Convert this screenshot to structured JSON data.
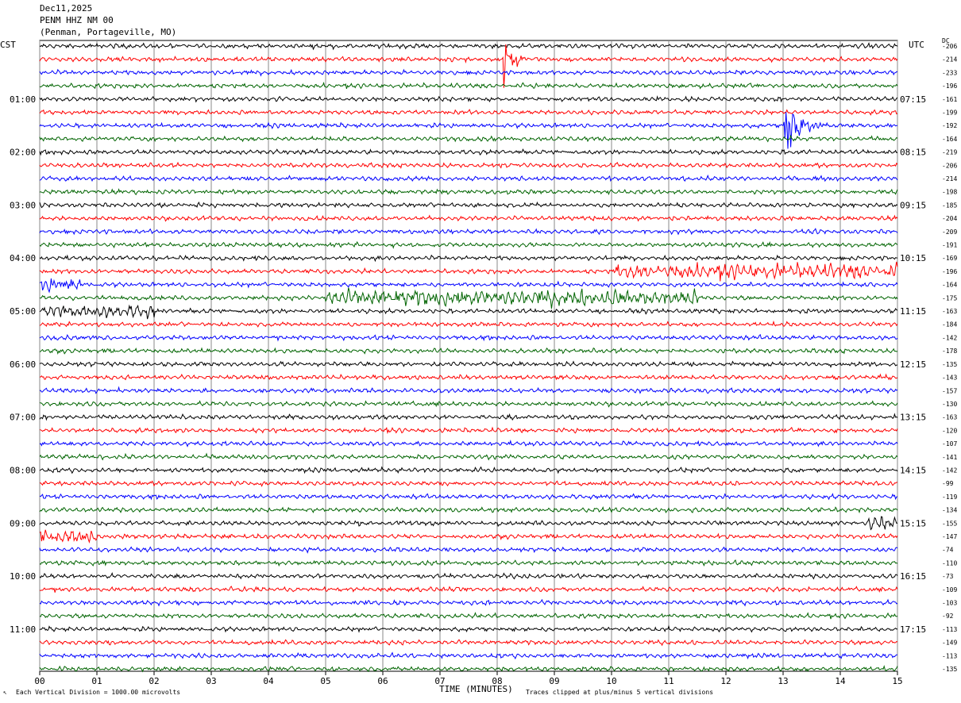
{
  "header": {
    "date": "Dec11,2025",
    "station": "PENM HHZ NM 00",
    "location": "(Penman, Portageville, MO)"
  },
  "left_tz": "CST",
  "right_tz": "UTC",
  "dc_label": "DC",
  "x_axis_title": "TIME (MINUTES)",
  "footer": {
    "scale_note": "Each Vertical Division = 1000.00 microvolts",
    "clip_note": "Traces clipped at plus/minus 5 vertical divisions"
  },
  "chart_data": {
    "type": "line",
    "title": "PENM HHZ NM 00",
    "xlabel": "TIME (MINUTES)",
    "xlim": [
      0,
      15
    ],
    "x_ticks": [
      "00",
      "01",
      "02",
      "03",
      "04",
      "05",
      "06",
      "07",
      "08",
      "09",
      "10",
      "11",
      "12",
      "13",
      "14",
      "15"
    ],
    "trace_colors": [
      "#000000",
      "#ff0000",
      "#0000ff",
      "#006400"
    ],
    "left_labels": [
      {
        "row": 4,
        "text": "01:00"
      },
      {
        "row": 8,
        "text": "02:00"
      },
      {
        "row": 12,
        "text": "03:00"
      },
      {
        "row": 16,
        "text": "04:00"
      },
      {
        "row": 20,
        "text": "05:00"
      },
      {
        "row": 24,
        "text": "06:00"
      },
      {
        "row": 28,
        "text": "07:00"
      },
      {
        "row": 32,
        "text": "08:00"
      },
      {
        "row": 36,
        "text": "09:00"
      },
      {
        "row": 40,
        "text": "10:00"
      },
      {
        "row": 44,
        "text": "11:00"
      }
    ],
    "right_labels": [
      {
        "row": 4,
        "text": "07:15"
      },
      {
        "row": 8,
        "text": "08:15"
      },
      {
        "row": 12,
        "text": "09:15"
      },
      {
        "row": 16,
        "text": "10:15"
      },
      {
        "row": 20,
        "text": "11:15"
      },
      {
        "row": 24,
        "text": "12:15"
      },
      {
        "row": 28,
        "text": "13:15"
      },
      {
        "row": 32,
        "text": "14:15"
      },
      {
        "row": 36,
        "text": "15:15"
      },
      {
        "row": 40,
        "text": "16:15"
      },
      {
        "row": 44,
        "text": "17:15"
      }
    ],
    "dc_offsets": [
      -206,
      -214,
      -233,
      -196,
      -161,
      -199,
      -192,
      -164,
      -219,
      -206,
      -214,
      -198,
      -185,
      -204,
      -209,
      -191,
      -169,
      -196,
      -164,
      -175,
      -163,
      -184,
      -142,
      -178,
      -135,
      -143,
      -157,
      -130,
      -163,
      -120,
      -107,
      -141,
      -142,
      -99,
      -119,
      -134,
      -155,
      -147,
      -74,
      -110,
      -73,
      -109,
      -103,
      -92,
      -113,
      -149,
      -113,
      -135
    ],
    "events": [
      {
        "row": 1,
        "start_min": 8.1,
        "end_min": 8.7,
        "peak_amplitude_div": 1.6,
        "label": "event"
      },
      {
        "row": 6,
        "start_min": 13.0,
        "end_min": 14.2,
        "peak_amplitude_div": 1.3,
        "label": "event"
      }
    ],
    "noisy_segments": [
      {
        "row": 17,
        "start_min": 10.0,
        "end_min": 15.0,
        "amplitude_div": 0.4
      },
      {
        "row": 18,
        "start_min": 0.0,
        "end_min": 0.7,
        "amplitude_div": 0.4
      },
      {
        "row": 19,
        "start_min": 5.0,
        "end_min": 11.5,
        "amplitude_div": 0.45
      },
      {
        "row": 20,
        "start_min": 0.0,
        "end_min": 2.0,
        "amplitude_div": 0.35
      },
      {
        "row": 37,
        "start_min": 0.0,
        "end_min": 1.0,
        "amplitude_div": 0.35
      },
      {
        "row": 36,
        "start_min": 14.5,
        "end_min": 15.0,
        "amplitude_div": 0.45
      }
    ],
    "grid": true
  }
}
